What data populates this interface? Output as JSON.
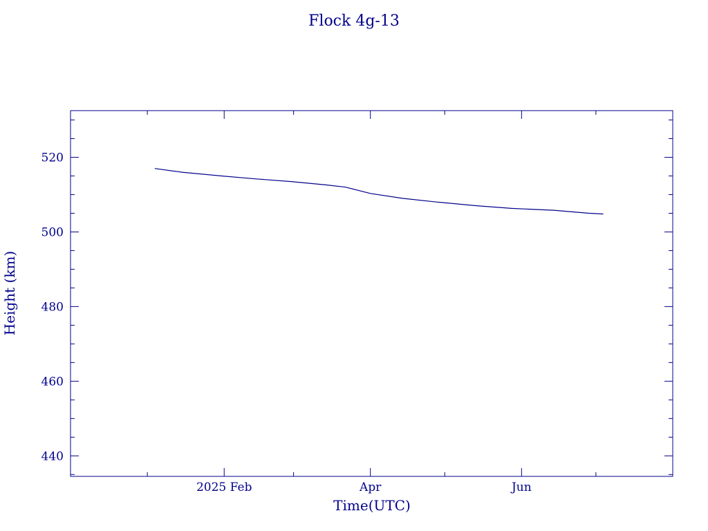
{
  "chart_data": {
    "type": "line",
    "title": "Flock 4g-13",
    "xlabel": "Time(UTC)",
    "ylabel": "Height (km)",
    "color": "#00008b",
    "xlim": [
      "2024-12-01",
      "2025-07-31"
    ],
    "ylim": [
      434.5,
      532.5
    ],
    "y_major_ticks": [
      440,
      460,
      480,
      500,
      520
    ],
    "y_minor_step": 5,
    "x_major_ticks": [
      {
        "date": "2025-02-01",
        "label": "2025 Feb"
      },
      {
        "date": "2025-04-01",
        "label": "Apr"
      },
      {
        "date": "2025-06-01",
        "label": "Jun"
      }
    ],
    "x_minor_ticks": [
      "2025-01-01",
      "2025-03-01",
      "2025-05-01",
      "2025-07-01"
    ],
    "grid": false,
    "series": [
      {
        "points": [
          {
            "x": "2025-01-04",
            "y": 517.0
          },
          {
            "x": "2025-01-15",
            "y": 516.0
          },
          {
            "x": "2025-01-31",
            "y": 515.0
          },
          {
            "x": "2025-02-14",
            "y": 514.2
          },
          {
            "x": "2025-02-28",
            "y": 513.5
          },
          {
            "x": "2025-03-14",
            "y": 512.6
          },
          {
            "x": "2025-03-22",
            "y": 512.0
          },
          {
            "x": "2025-04-01",
            "y": 510.3
          },
          {
            "x": "2025-04-14",
            "y": 509.0
          },
          {
            "x": "2025-04-28",
            "y": 508.0
          },
          {
            "x": "2025-05-14",
            "y": 507.0
          },
          {
            "x": "2025-05-28",
            "y": 506.3
          },
          {
            "x": "2025-06-14",
            "y": 505.8
          },
          {
            "x": "2025-06-28",
            "y": 505.0
          },
          {
            "x": "2025-07-04",
            "y": 504.8
          }
        ]
      }
    ]
  }
}
